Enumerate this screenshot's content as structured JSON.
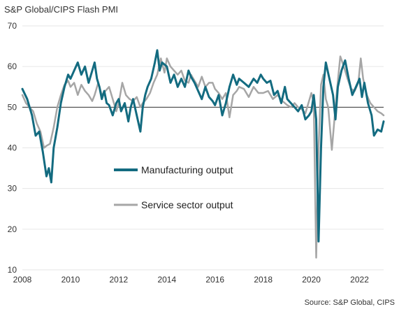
{
  "header": {
    "title": "S&P Global/CIPS Flash PMI"
  },
  "footer": {
    "source": "Source: S&P Global, CIPS"
  },
  "colors": {
    "manufacturing": "#136b80",
    "services": "#a6a6a6",
    "grid": "#e6e6e6",
    "reference": "#333333"
  },
  "chart_data": {
    "type": "line",
    "title": "S&P Global/CIPS Flash PMI",
    "xlabel": "",
    "ylabel": "",
    "xlim": [
      2008,
      2023
    ],
    "ylim": [
      10,
      70
    ],
    "yticks": [
      10,
      20,
      30,
      40,
      50,
      60,
      70
    ],
    "xticks": [
      2008,
      2010,
      2012,
      2014,
      2016,
      2018,
      2020,
      2022
    ],
    "reference_line": 50,
    "grid": "horizontal",
    "legend": "middle-left",
    "series": [
      {
        "name": "Manufacturing output",
        "color": "#136b80",
        "x": [
          2008.0,
          2008.2,
          2008.4,
          2008.55,
          2008.7,
          2008.85,
          2009.0,
          2009.1,
          2009.2,
          2009.3,
          2009.45,
          2009.6,
          2009.75,
          2009.9,
          2010.0,
          2010.15,
          2010.3,
          2010.45,
          2010.6,
          2010.75,
          2010.9,
          2011.0,
          2011.1,
          2011.2,
          2011.3,
          2011.4,
          2011.5,
          2011.6,
          2011.75,
          2011.9,
          2012.0,
          2012.1,
          2012.25,
          2012.4,
          2012.5,
          2012.6,
          2012.75,
          2012.9,
          2013.0,
          2013.1,
          2013.2,
          2013.35,
          2013.5,
          2013.6,
          2013.7,
          2013.8,
          2014.0,
          2014.15,
          2014.3,
          2014.45,
          2014.6,
          2014.75,
          2014.9,
          2015.0,
          2015.15,
          2015.3,
          2015.45,
          2015.6,
          2015.75,
          2015.9,
          2016.0,
          2016.15,
          2016.3,
          2016.45,
          2016.6,
          2016.75,
          2016.9,
          2017.0,
          2017.2,
          2017.4,
          2017.6,
          2017.75,
          2017.9,
          2018.0,
          2018.15,
          2018.3,
          2018.45,
          2018.6,
          2018.75,
          2018.9,
          2019.0,
          2019.15,
          2019.3,
          2019.45,
          2019.6,
          2019.75,
          2019.9,
          2020.0,
          2020.1,
          2020.2,
          2020.3,
          2020.4,
          2020.5,
          2020.6,
          2020.75,
          2020.9,
          2021.0,
          2021.1,
          2021.25,
          2021.4,
          2021.55,
          2021.7,
          2021.85,
          2022.0,
          2022.1,
          2022.2,
          2022.35,
          2022.5,
          2022.6,
          2022.75,
          2022.9,
          2023.0
        ],
        "values": [
          54.5,
          52.0,
          48.0,
          43.0,
          44.0,
          39.0,
          33.0,
          35.0,
          31.5,
          40.0,
          45.0,
          51.0,
          55.0,
          58.0,
          57.0,
          59.0,
          61.0,
          58.0,
          60.0,
          56.0,
          59.0,
          61.0,
          57.0,
          55.0,
          52.0,
          54.0,
          51.0,
          50.5,
          48.0,
          51.0,
          52.0,
          49.0,
          51.0,
          46.5,
          50.0,
          52.0,
          48.0,
          44.0,
          50.0,
          53.0,
          55.0,
          57.0,
          61.0,
          64.0,
          59.0,
          61.0,
          60.0,
          56.0,
          58.0,
          55.0,
          57.0,
          55.0,
          59.0,
          57.5,
          56.0,
          54.0,
          52.0,
          55.0,
          52.5,
          51.5,
          50.5,
          53.0,
          48.0,
          51.0,
          55.0,
          58.0,
          55.5,
          57.0,
          56.0,
          55.0,
          57.0,
          56.0,
          58.0,
          57.0,
          56.0,
          56.5,
          53.0,
          54.0,
          51.0,
          55.0,
          52.0,
          51.0,
          50.0,
          49.0,
          50.5,
          47.0,
          48.0,
          49.0,
          53.0,
          47.0,
          17.0,
          40.0,
          55.0,
          61.0,
          57.0,
          53.0,
          47.0,
          55.0,
          59.0,
          61.5,
          57.0,
          53.0,
          55.0,
          57.0,
          52.5,
          56.0,
          51.0,
          48.0,
          43.0,
          44.5,
          44.0,
          46.5
        ]
      },
      {
        "name": "Service sector output",
        "color": "#a6a6a6",
        "x": [
          2008.0,
          2008.15,
          2008.3,
          2008.45,
          2008.6,
          2008.75,
          2008.9,
          2009.0,
          2009.15,
          2009.3,
          2009.45,
          2009.6,
          2009.75,
          2009.9,
          2010.0,
          2010.15,
          2010.3,
          2010.45,
          2010.6,
          2010.75,
          2010.9,
          2011.0,
          2011.15,
          2011.3,
          2011.45,
          2011.6,
          2011.75,
          2011.9,
          2012.0,
          2012.15,
          2012.3,
          2012.45,
          2012.6,
          2012.75,
          2012.9,
          2013.0,
          2013.15,
          2013.3,
          2013.45,
          2013.6,
          2013.75,
          2013.9,
          2014.0,
          2014.15,
          2014.3,
          2014.45,
          2014.6,
          2014.75,
          2014.9,
          2015.0,
          2015.15,
          2015.3,
          2015.45,
          2015.6,
          2015.75,
          2015.9,
          2016.0,
          2016.15,
          2016.3,
          2016.45,
          2016.6,
          2016.75,
          2016.9,
          2017.0,
          2017.2,
          2017.4,
          2017.6,
          2017.8,
          2018.0,
          2018.2,
          2018.4,
          2018.6,
          2018.8,
          2019.0,
          2019.15,
          2019.3,
          2019.45,
          2019.6,
          2019.75,
          2019.9,
          2020.0,
          2020.1,
          2020.2,
          2020.3,
          2020.4,
          2020.5,
          2020.6,
          2020.7,
          2020.85,
          2021.0,
          2021.1,
          2021.2,
          2021.35,
          2021.5,
          2021.65,
          2021.8,
          2021.95,
          2022.05,
          2022.15,
          2022.3,
          2022.45,
          2022.6,
          2022.75,
          2022.9,
          2023.0
        ],
        "values": [
          53.0,
          51.0,
          50.0,
          49.0,
          46.0,
          44.0,
          40.0,
          40.5,
          41.0,
          45.0,
          50.0,
          53.0,
          55.5,
          56.5,
          55.0,
          56.0,
          53.0,
          55.5,
          54.0,
          53.0,
          51.5,
          53.0,
          56.0,
          53.0,
          54.0,
          55.0,
          52.0,
          49.0,
          51.0,
          56.0,
          53.0,
          52.0,
          51.5,
          52.5,
          50.0,
          51.0,
          52.0,
          53.5,
          56.0,
          58.0,
          62.0,
          58.5,
          62.0,
          60.0,
          59.0,
          58.0,
          59.0,
          56.5,
          56.0,
          58.0,
          56.5,
          55.0,
          57.5,
          55.0,
          56.0,
          56.0,
          54.5,
          53.5,
          52.0,
          53.5,
          47.5,
          53.0,
          54.0,
          55.0,
          54.5,
          52.5,
          55.0,
          53.5,
          53.5,
          54.0,
          52.0,
          53.0,
          51.5,
          50.5,
          50.0,
          51.0,
          50.0,
          49.5,
          48.5,
          51.5,
          53.5,
          51.0,
          13.0,
          40.0,
          55.5,
          58.0,
          52.0,
          50.0,
          39.5,
          50.0,
          56.5,
          62.5,
          60.0,
          57.0,
          54.5,
          54.0,
          56.0,
          62.0,
          57.0,
          53.0,
          51.0,
          50.0,
          49.0,
          48.5,
          48.0
        ]
      }
    ]
  }
}
